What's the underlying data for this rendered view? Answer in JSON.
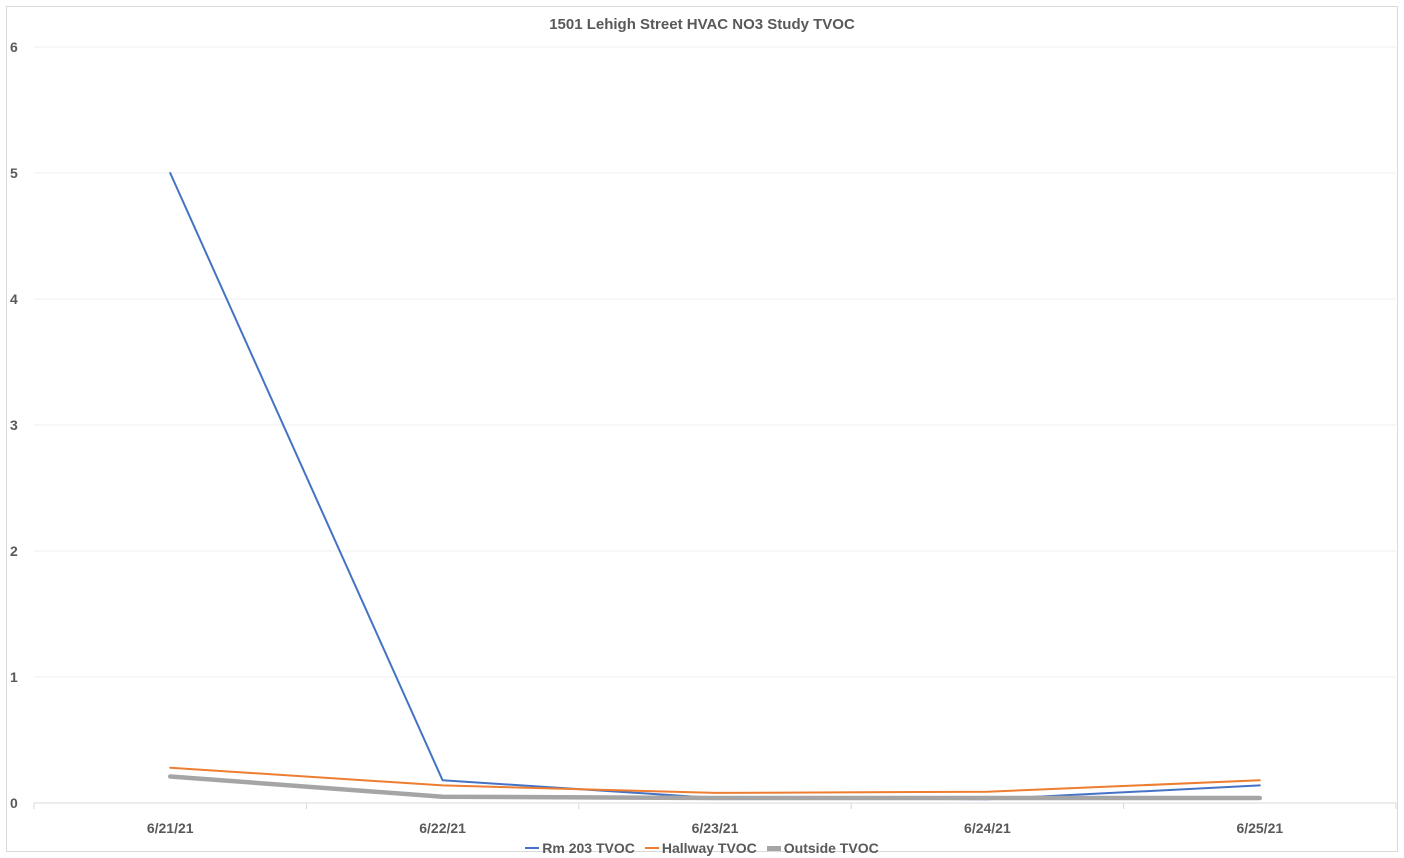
{
  "chart_data": {
    "type": "line",
    "title": "1501 Lehigh Street HVAC NO3 Study TVOC",
    "xlabel": "",
    "ylabel": "",
    "categories": [
      "6/21/21",
      "6/22/21",
      "6/23/21",
      "6/24/21",
      "6/25/21"
    ],
    "ylim": [
      0,
      6
    ],
    "yticks": [
      "0",
      "1",
      "2",
      "3",
      "4",
      "5",
      "6"
    ],
    "grid": true,
    "legend_position": "bottom",
    "series": [
      {
        "name": "Rm 203 TVOC",
        "values": [
          5.0,
          0.18,
          0.04,
          0.03,
          0.14
        ],
        "color": "#4472c4"
      },
      {
        "name": "Hallway TVOC",
        "values": [
          0.28,
          0.14,
          0.08,
          0.09,
          0.18
        ],
        "color": "#ed7d31"
      },
      {
        "name": "Outside TVOC",
        "values": [
          0.21,
          0.05,
          0.04,
          0.04,
          0.04
        ],
        "color": "#a5a5a5"
      }
    ]
  }
}
